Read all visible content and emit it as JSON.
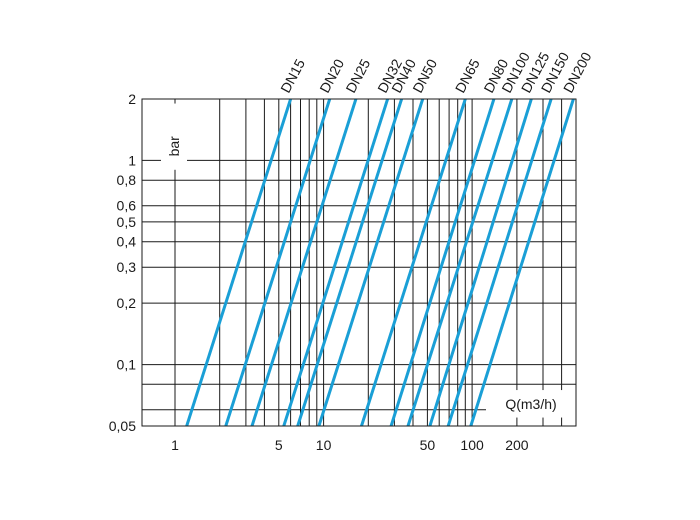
{
  "chart_data": {
    "type": "line",
    "x_scale": "log",
    "y_scale": "log",
    "xlim": [
      0.6,
      500
    ],
    "ylim": [
      0.05,
      2
    ],
    "x_ticks": [
      {
        "value": 1,
        "label": "1"
      },
      {
        "value": 5,
        "label": "5"
      },
      {
        "value": 10,
        "label": "10"
      },
      {
        "value": 50,
        "label": "50"
      },
      {
        "value": 100,
        "label": "100"
      },
      {
        "value": 200,
        "label": "200"
      }
    ],
    "x_grid": [
      1,
      2,
      3,
      4,
      5,
      6,
      7,
      8,
      9,
      10,
      20,
      30,
      40,
      50,
      60,
      70,
      80,
      90,
      100,
      200,
      300,
      400,
      500
    ],
    "y_ticks": [
      {
        "value": 2,
        "label": "2"
      },
      {
        "value": 1,
        "label": "1"
      },
      {
        "value": 0.8,
        "label": "0,8"
      },
      {
        "value": 0.6,
        "label": "0,6"
      },
      {
        "value": 0.5,
        "label": "0,5"
      },
      {
        "value": 0.4,
        "label": "0,4"
      },
      {
        "value": 0.3,
        "label": "0,3"
      },
      {
        "value": 0.2,
        "label": "0,2"
      },
      {
        "value": 0.1,
        "label": "0,1"
      },
      {
        "value": 0.05,
        "label": "0,05"
      }
    ],
    "y_grid": [
      0.05,
      0.06,
      0.08,
      0.1,
      0.2,
      0.3,
      0.4,
      0.5,
      0.6,
      0.8,
      1,
      2
    ],
    "xlabel": "Q(m3/h)",
    "ylabel": "bar",
    "grid": true,
    "line_color": "#1a9fd6",
    "series": [
      {
        "name": "DN15",
        "points": [
          [
            1.2,
            0.05
          ],
          [
            6.0,
            2
          ]
        ]
      },
      {
        "name": "DN20",
        "points": [
          [
            2.2,
            0.05
          ],
          [
            11,
            2
          ]
        ]
      },
      {
        "name": "DN25",
        "points": [
          [
            3.3,
            0.05
          ],
          [
            16.5,
            2
          ]
        ]
      },
      {
        "name": "DN32",
        "points": [
          [
            5.4,
            0.05
          ],
          [
            27,
            2
          ]
        ]
      },
      {
        "name": "DN40",
        "points": [
          [
            6.7,
            0.05
          ],
          [
            33.5,
            2
          ]
        ]
      },
      {
        "name": "DN50",
        "points": [
          [
            9.3,
            0.05
          ],
          [
            46.5,
            2
          ]
        ]
      },
      {
        "name": "DN65",
        "points": [
          [
            18,
            0.05
          ],
          [
            90,
            2
          ]
        ]
      },
      {
        "name": "DN80",
        "points": [
          [
            28.5,
            0.05
          ],
          [
            140,
            2
          ]
        ]
      },
      {
        "name": "DN100",
        "points": [
          [
            37,
            0.05
          ],
          [
            185,
            2
          ]
        ]
      },
      {
        "name": "DN125",
        "points": [
          [
            52,
            0.05
          ],
          [
            250,
            2
          ]
        ]
      },
      {
        "name": "DN150",
        "points": [
          [
            69,
            0.05
          ],
          [
            340,
            2
          ]
        ]
      },
      {
        "name": "DN200",
        "points": [
          [
            98,
            0.05
          ],
          [
            480,
            2
          ]
        ]
      }
    ]
  }
}
